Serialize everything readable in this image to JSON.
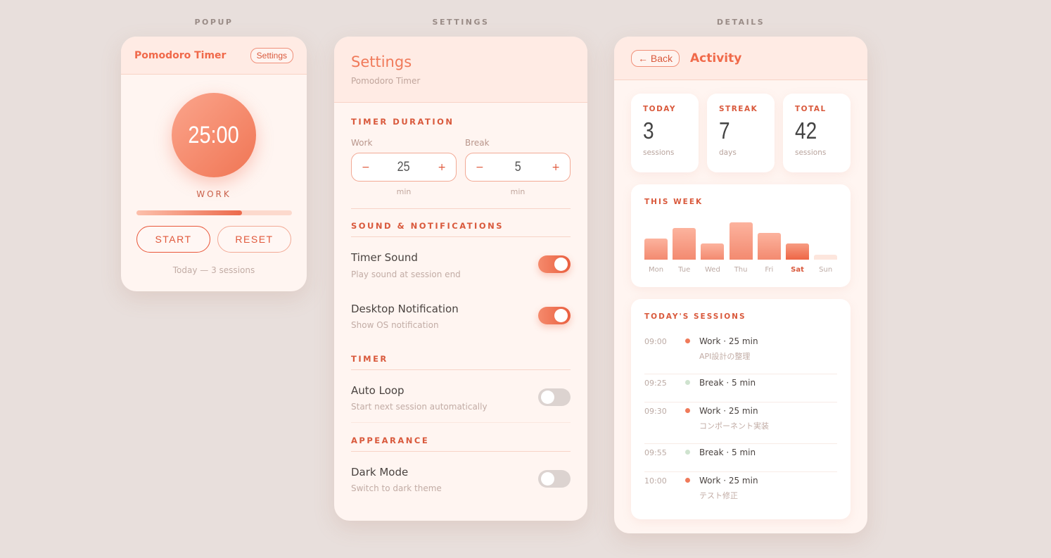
{
  "labels": {
    "popup": "POPUP",
    "settings": "SETTINGS",
    "details": "DETAILS"
  },
  "popup": {
    "title": "Pomodoro Timer",
    "settings_button": "Settings",
    "time": "25:00",
    "mode": "WORK",
    "progress": 0.68,
    "start": "START",
    "reset": "RESET",
    "footer": "Today — 3 sessions"
  },
  "settings": {
    "title": "Settings",
    "subtitle": "Pomodoro Timer",
    "timer_duration": {
      "heading": "TIMER DURATION",
      "work_label": "Work",
      "work_value": "25",
      "break_label": "Break",
      "break_value": "5",
      "unit": "min",
      "minus": "−",
      "plus": "+"
    },
    "sound": {
      "heading": "SOUND & NOTIFICATIONS",
      "timer_sound": {
        "title": "Timer Sound",
        "desc": "Play sound at session end",
        "on": true
      },
      "desktop": {
        "title": "Desktop Notification",
        "desc": "Show OS notification",
        "on": true
      }
    },
    "timer": {
      "heading": "TIMER",
      "auto_loop": {
        "title": "Auto Loop",
        "desc": "Start next session automatically",
        "on": false
      }
    },
    "appearance": {
      "heading": "APPEARANCE",
      "dark_mode": {
        "title": "Dark Mode",
        "desc": "Switch to dark theme",
        "on": false
      }
    }
  },
  "details": {
    "back": "← Back",
    "title": "Activity",
    "stats": [
      {
        "label": "TODAY",
        "value": "3",
        "unit": "sessions"
      },
      {
        "label": "STREAK",
        "value": "7",
        "unit": "days"
      },
      {
        "label": "TOTAL",
        "value": "42",
        "unit": "sessions"
      }
    ],
    "week_title": "THIS WEEK",
    "chart_data": {
      "type": "bar",
      "categories": [
        "Mon",
        "Tue",
        "Wed",
        "Thu",
        "Fri",
        "Sat",
        "Sun"
      ],
      "values": [
        4,
        6,
        3,
        7,
        5,
        3,
        0
      ],
      "highlight": "Sat"
    },
    "sessions_title": "TODAY'S SESSIONS",
    "sessions": [
      {
        "time": "09:00",
        "type": "Work · 25 min",
        "desc": "API設計の整理",
        "kind": "work"
      },
      {
        "time": "09:25",
        "type": "Break · 5 min",
        "desc": "",
        "kind": "break"
      },
      {
        "time": "09:30",
        "type": "Work · 25 min",
        "desc": "コンポーネント実装",
        "kind": "work"
      },
      {
        "time": "09:55",
        "type": "Break · 5 min",
        "desc": "",
        "kind": "break"
      },
      {
        "time": "10:00",
        "type": "Work · 25 min",
        "desc": "テスト修正",
        "kind": "work"
      }
    ]
  },
  "colors": {
    "accent": "#f0694a",
    "background": "#e8dfdc",
    "work_dot": "#f07a5a",
    "break_dot": "#cfe3cf"
  }
}
